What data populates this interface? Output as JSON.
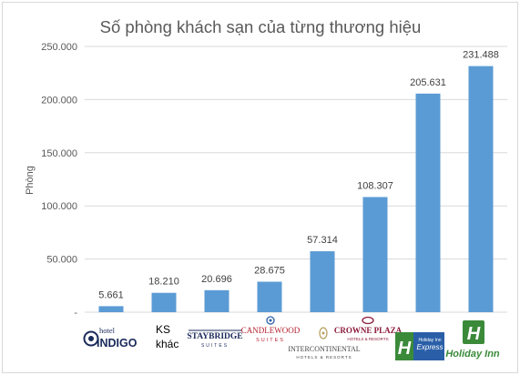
{
  "chart_data": {
    "type": "bar",
    "title": "Số phòng khách sạn của từng thương hiệu",
    "ylabel": "Phòng",
    "xlabel": "",
    "ylim": [
      0,
      250000
    ],
    "yticks": [
      "-",
      "50.000",
      "100.000",
      "150.000",
      "200.000",
      "250.000"
    ],
    "grid": true,
    "bar_color": "#5b9bd5",
    "categories": [
      "hotel INDIGO",
      "KS khác",
      "STAYBRIDGE SUITES",
      "CANDLEWOOD SUITES",
      "INTERCONTINENTAL HOTELS & RESORTS",
      "CROWNE PLAZA HOTELS & RESORTS",
      "Holiday Inn Express",
      "Holiday Inn"
    ],
    "values": [
      5661,
      18210,
      20696,
      28675,
      57314,
      108307,
      205631,
      231488
    ],
    "value_labels": [
      "5.661",
      "18.210",
      "20.696",
      "28.675",
      "57.314",
      "108.307",
      "205.631",
      "231.488"
    ]
  },
  "logos": {
    "indigo": {
      "top": "hotel",
      "main": "INDIGO"
    },
    "ks_khac": {
      "line1": "KS",
      "line2": "khác"
    },
    "staybridge": {
      "main": "STAYBRIDGE",
      "sub": "SUITES"
    },
    "candlewood": {
      "main": "CANDLEWOOD",
      "sub": "SUITES"
    },
    "intercontinental": {
      "main": "INTERCONTINENTAL",
      "sub": "HOTELS & RESORTS"
    },
    "crowne": {
      "main": "CROWNE PLAZA",
      "sub": "HOTELS & RESORTS"
    },
    "hi_express": {
      "small": "Holiday Inn",
      "main": "Express"
    },
    "holiday_inn": {
      "main": "Holiday Inn"
    }
  },
  "colors": {
    "holiday_green": "#3a8a3a",
    "crowne_red": "#8b1a3a",
    "candlewood_red": "#b21f2d",
    "express_blue": "#2a5fa8",
    "indigo_navy": "#1a2a5a"
  }
}
